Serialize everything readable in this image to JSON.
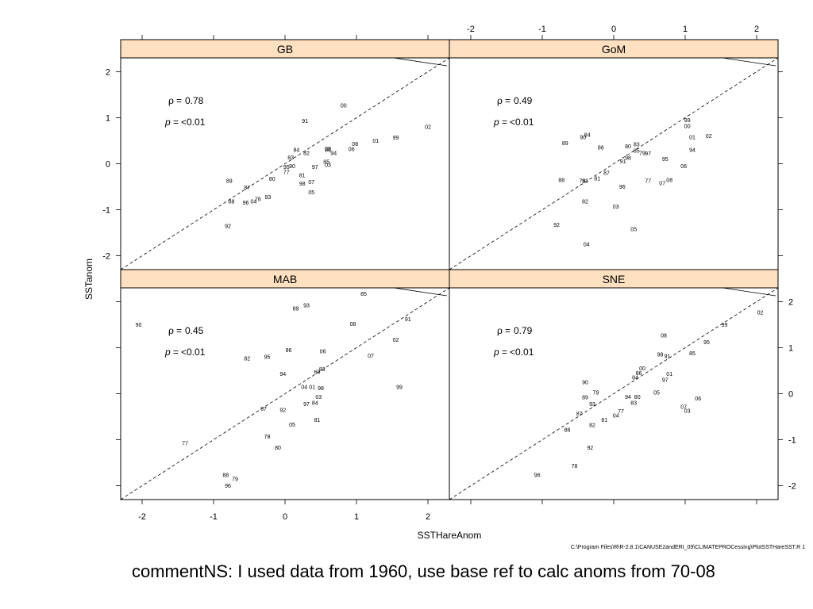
{
  "chart_data": {
    "type": "scatter",
    "xlabel": "SSTHareAnom",
    "ylabel": "SSTanom",
    "xlim": [
      -2.3,
      2.3
    ],
    "ylim": [
      -2.3,
      2.3
    ],
    "x_ticks": [
      "-2",
      "-1",
      "0",
      "1",
      "2"
    ],
    "y_ticks": [
      "-2",
      "-1",
      "0",
      "1",
      "2"
    ],
    "panels": [
      {
        "name": "GB",
        "rho_symbol": "ρ",
        "rho": "0.78",
        "p_symbol": "p",
        "p": "<0.01",
        "points": [
          {
            "label": "00",
            "x": 0.82,
            "y": 1.27
          },
          {
            "label": "91",
            "x": 0.28,
            "y": 0.93
          },
          {
            "label": "02",
            "x": 2.0,
            "y": 0.8
          },
          {
            "label": "99",
            "x": 1.55,
            "y": 0.57
          },
          {
            "label": "01",
            "x": 1.27,
            "y": 0.5
          },
          {
            "label": "08",
            "x": 0.98,
            "y": 0.43
          },
          {
            "label": "06",
            "x": 0.93,
            "y": 0.32
          },
          {
            "label": "09",
            "x": 0.6,
            "y": 0.33
          },
          {
            "label": "86",
            "x": 0.6,
            "y": 0.3
          },
          {
            "label": "94",
            "x": 0.68,
            "y": 0.23
          },
          {
            "label": "84",
            "x": 0.16,
            "y": 0.3
          },
          {
            "label": "82",
            "x": 0.3,
            "y": 0.23
          },
          {
            "label": "83",
            "x": 0.08,
            "y": 0.14
          },
          {
            "label": "85",
            "x": 0.58,
            "y": 0.04
          },
          {
            "label": "03",
            "x": 0.6,
            "y": -0.03
          },
          {
            "label": "97",
            "x": 0.42,
            "y": -0.07
          },
          {
            "label": "90",
            "x": 0.1,
            "y": -0.05
          },
          {
            "label": "95",
            "x": 0.02,
            "y": -0.07
          },
          {
            "label": "77",
            "x": 0.02,
            "y": -0.18
          },
          {
            "label": "81",
            "x": 0.24,
            "y": -0.25
          },
          {
            "label": "80",
            "x": -0.18,
            "y": -0.33
          },
          {
            "label": "07",
            "x": 0.37,
            "y": -0.4
          },
          {
            "label": "98",
            "x": 0.24,
            "y": -0.43
          },
          {
            "label": "89",
            "x": -0.78,
            "y": -0.37
          },
          {
            "label": "87",
            "x": -0.53,
            "y": -0.52
          },
          {
            "label": "05",
            "x": 0.37,
            "y": -0.62
          },
          {
            "label": "93",
            "x": -0.24,
            "y": -0.72
          },
          {
            "label": "78",
            "x": -0.38,
            "y": -0.77
          },
          {
            "label": "04",
            "x": -0.44,
            "y": -0.82
          },
          {
            "label": "96",
            "x": -0.55,
            "y": -0.84
          },
          {
            "label": "88",
            "x": -0.75,
            "y": -0.82
          },
          {
            "label": "92",
            "x": -0.8,
            "y": -1.35
          }
        ]
      },
      {
        "name": "GoM",
        "rho_symbol": "ρ",
        "rho": "0.49",
        "p_symbol": "p",
        "p": "<0.01",
        "points": [
          {
            "label": "99",
            "x": 1.03,
            "y": 0.95
          },
          {
            "label": "00",
            "x": 1.03,
            "y": 0.82
          },
          {
            "label": "02",
            "x": 1.33,
            "y": 0.6
          },
          {
            "label": "01",
            "x": 1.1,
            "y": 0.58
          },
          {
            "label": "94",
            "x": 1.1,
            "y": 0.3
          },
          {
            "label": "95",
            "x": 0.72,
            "y": 0.1
          },
          {
            "label": "06",
            "x": 0.98,
            "y": -0.05
          },
          {
            "label": "84",
            "x": -0.37,
            "y": 0.63
          },
          {
            "label": "90",
            "x": -0.43,
            "y": 0.58
          },
          {
            "label": "89",
            "x": -0.68,
            "y": 0.45
          },
          {
            "label": "86",
            "x": -0.18,
            "y": 0.35
          },
          {
            "label": "80",
            "x": 0.2,
            "y": 0.38
          },
          {
            "label": "83",
            "x": 0.32,
            "y": 0.42
          },
          {
            "label": "85",
            "x": 0.32,
            "y": 0.28
          },
          {
            "label": "79",
            "x": 0.4,
            "y": 0.23
          },
          {
            "label": "97",
            "x": 0.48,
            "y": 0.22
          },
          {
            "label": "98",
            "x": 0.2,
            "y": 0.13
          },
          {
            "label": "91",
            "x": 0.13,
            "y": 0.05
          },
          {
            "label": "87",
            "x": -0.1,
            "y": -0.2
          },
          {
            "label": "81",
            "x": -0.23,
            "y": -0.32
          },
          {
            "label": "78",
            "x": -0.44,
            "y": -0.37
          },
          {
            "label": "93",
            "x": -0.4,
            "y": -0.37
          },
          {
            "label": "88",
            "x": -0.73,
            "y": -0.35
          },
          {
            "label": "77",
            "x": 0.48,
            "y": -0.37
          },
          {
            "label": "07",
            "x": 0.68,
            "y": -0.42
          },
          {
            "label": "08",
            "x": 0.78,
            "y": -0.35
          },
          {
            "label": "96",
            "x": 0.12,
            "y": -0.5
          },
          {
            "label": "82",
            "x": -0.4,
            "y": -0.82
          },
          {
            "label": "03",
            "x": 0.03,
            "y": -0.93
          },
          {
            "label": "92",
            "x": -0.8,
            "y": -1.33
          },
          {
            "label": "05",
            "x": 0.28,
            "y": -1.42
          },
          {
            "label": "04",
            "x": -0.38,
            "y": -1.75
          }
        ]
      },
      {
        "name": "MAB",
        "rho_symbol": "ρ",
        "rho": "0.45",
        "p_symbol": "p",
        "p": "<0.01",
        "points": [
          {
            "label": "85",
            "x": 1.1,
            "y": 2.17
          },
          {
            "label": "93",
            "x": 0.3,
            "y": 1.92
          },
          {
            "label": "89",
            "x": 0.15,
            "y": 1.85
          },
          {
            "label": "90",
            "x": -2.05,
            "y": 1.5
          },
          {
            "label": "08",
            "x": 0.95,
            "y": 1.52
          },
          {
            "label": "91",
            "x": 1.72,
            "y": 1.62
          },
          {
            "label": "02",
            "x": 1.55,
            "y": 1.17
          },
          {
            "label": "86",
            "x": 0.05,
            "y": 0.95
          },
          {
            "label": "06",
            "x": 0.53,
            "y": 0.92
          },
          {
            "label": "07",
            "x": 1.2,
            "y": 0.83
          },
          {
            "label": "82",
            "x": -0.53,
            "y": 0.77
          },
          {
            "label": "95",
            "x": -0.25,
            "y": 0.8
          },
          {
            "label": "83",
            "x": 0.52,
            "y": 0.53
          },
          {
            "label": "60",
            "x": 0.45,
            "y": 0.47
          },
          {
            "label": "94",
            "x": -0.03,
            "y": 0.43
          },
          {
            "label": "04",
            "x": 0.27,
            "y": 0.15
          },
          {
            "label": "01",
            "x": 0.38,
            "y": 0.15
          },
          {
            "label": "98",
            "x": 0.5,
            "y": 0.12
          },
          {
            "label": "99",
            "x": 1.6,
            "y": 0.15
          },
          {
            "label": "03",
            "x": 0.47,
            "y": -0.07
          },
          {
            "label": "97",
            "x": 0.3,
            "y": -0.22
          },
          {
            "label": "84",
            "x": 0.42,
            "y": -0.2
          },
          {
            "label": "87",
            "x": -0.3,
            "y": -0.33
          },
          {
            "label": "92",
            "x": -0.03,
            "y": -0.35
          },
          {
            "label": "81",
            "x": 0.45,
            "y": -0.57
          },
          {
            "label": "05",
            "x": 0.1,
            "y": -0.67
          },
          {
            "label": "78",
            "x": -0.25,
            "y": -0.93
          },
          {
            "label": "80",
            "x": -0.1,
            "y": -1.17
          },
          {
            "label": "77",
            "x": -1.4,
            "y": -1.08
          },
          {
            "label": "88",
            "x": -0.83,
            "y": -1.77
          },
          {
            "label": "79",
            "x": -0.7,
            "y": -1.85
          },
          {
            "label": "96",
            "x": -0.8,
            "y": -2.0
          }
        ]
      },
      {
        "name": "SNE",
        "rho_symbol": "ρ",
        "rho": "0.79",
        "p_symbol": "p",
        "p": "<0.01",
        "points": [
          {
            "label": "02",
            "x": 2.05,
            "y": 1.77
          },
          {
            "label": "99",
            "x": 1.55,
            "y": 1.5
          },
          {
            "label": "95",
            "x": 1.3,
            "y": 1.12
          },
          {
            "label": "08",
            "x": 0.7,
            "y": 1.27
          },
          {
            "label": "85",
            "x": 1.1,
            "y": 0.88
          },
          {
            "label": "98",
            "x": 0.65,
            "y": 0.85
          },
          {
            "label": "91",
            "x": 0.75,
            "y": 0.82
          },
          {
            "label": "00",
            "x": 0.4,
            "y": 0.55
          },
          {
            "label": "86",
            "x": 0.35,
            "y": 0.45
          },
          {
            "label": "84",
            "x": 0.3,
            "y": 0.35
          },
          {
            "label": "01",
            "x": 0.78,
            "y": 0.43
          },
          {
            "label": "97",
            "x": 0.72,
            "y": 0.3
          },
          {
            "label": "90",
            "x": -0.4,
            "y": 0.25
          },
          {
            "label": "79",
            "x": -0.25,
            "y": 0.03
          },
          {
            "label": "89",
            "x": -0.4,
            "y": -0.08
          },
          {
            "label": "93",
            "x": -0.3,
            "y": -0.22
          },
          {
            "label": "94",
            "x": 0.2,
            "y": -0.07
          },
          {
            "label": "80",
            "x": 0.33,
            "y": -0.07
          },
          {
            "label": "83",
            "x": 0.28,
            "y": -0.2
          },
          {
            "label": "05",
            "x": 0.6,
            "y": 0.03
          },
          {
            "label": "06",
            "x": 1.18,
            "y": -0.1
          },
          {
            "label": "07",
            "x": 0.98,
            "y": -0.28
          },
          {
            "label": "03",
            "x": 1.03,
            "y": -0.37
          },
          {
            "label": "87",
            "x": -0.48,
            "y": -0.43
          },
          {
            "label": "77",
            "x": 0.1,
            "y": -0.38
          },
          {
            "label": "04",
            "x": 0.03,
            "y": -0.47
          },
          {
            "label": "81",
            "x": -0.13,
            "y": -0.57
          },
          {
            "label": "82",
            "x": -0.3,
            "y": -0.68
          },
          {
            "label": "88",
            "x": -0.65,
            "y": -0.78
          },
          {
            "label": "92",
            "x": -0.33,
            "y": -1.17
          },
          {
            "label": "78",
            "x": -0.55,
            "y": -1.57
          },
          {
            "label": "96",
            "x": -1.07,
            "y": -1.77
          }
        ]
      }
    ]
  },
  "footer": {
    "path": "C:\\Program Files\\R\\R-2.8.1\\CANUSE2andERI_09\\CLIMATEPROCessing\\PlotSSTHareSST.R 1"
  },
  "comment": "commentNS: I used data from 1960, use base ref to calc anoms from 70-08",
  "colors": {
    "strip": "#ffe0c0",
    "ink": "#000000",
    "background": "#ffffff"
  }
}
